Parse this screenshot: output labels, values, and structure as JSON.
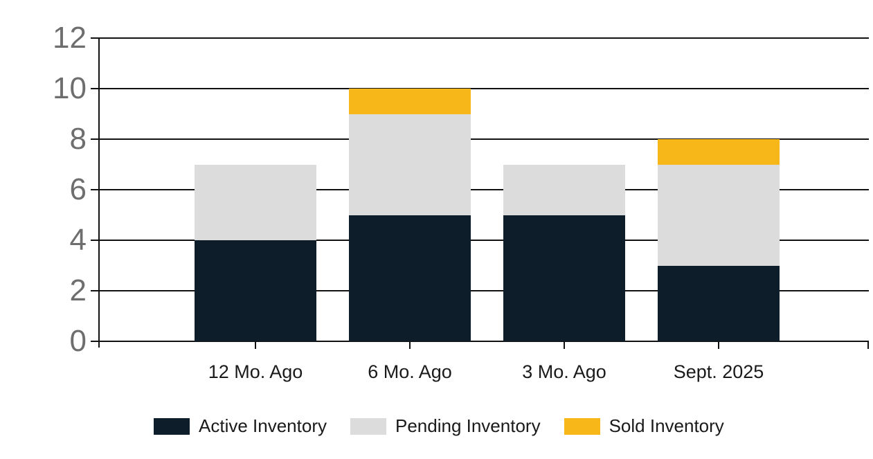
{
  "chart_data": {
    "type": "bar",
    "stacked": true,
    "title": "",
    "xlabel": "",
    "ylabel": "",
    "categories": [
      "12 Mo. Ago",
      "6 Mo. Ago",
      "3 Mo. Ago",
      "Sept. 2025"
    ],
    "series": [
      {
        "name": "Active Inventory",
        "color": "#0D1E2A",
        "values": [
          4,
          5,
          5,
          3
        ]
      },
      {
        "name": "Pending Inventory",
        "color": "#DCDCDC",
        "values": [
          3,
          4,
          2,
          4
        ]
      },
      {
        "name": "Sold Inventory",
        "color": "#F8B719",
        "values": [
          0,
          1,
          0,
          1
        ]
      }
    ],
    "totals": [
      7,
      10,
      7,
      8
    ],
    "ylim": [
      0,
      12
    ],
    "yticks": [
      0,
      2,
      4,
      6,
      8,
      10,
      12
    ],
    "grid": true,
    "legend_position": "bottom"
  },
  "colors": {
    "background": "#FFFFFF",
    "axis": "#111111",
    "gridline": "#111111",
    "y_tick_label": "#6E6E6E",
    "x_tick_label": "#1A1A1A",
    "legend_text": "#1A1A1A"
  }
}
